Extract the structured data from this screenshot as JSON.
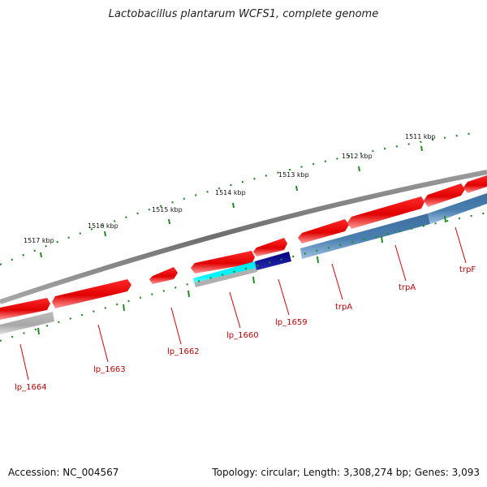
{
  "map": {
    "title": "Lactobacillus plantarum WCFS1, complete genome",
    "accession_text": "Accession: NC_004567",
    "summary_text": "Topology: circular; Length: 3,308,274 bp; Genes: 3,093"
  },
  "kbp_ticks": [
    "1517 kbp",
    "1516 kbp",
    "1515 kbp",
    "1514 kbp",
    "1513 kbp",
    "1512 kbp",
    "1511 kbp"
  ],
  "gene_labels": [
    "lp_1664",
    "lp_1663",
    "lp_1662",
    "lp_1660",
    "lp_1659",
    "trpA",
    "trpA",
    "trpF"
  ],
  "colors": {
    "forward_strand": "#e00000",
    "reverse_strand": "#4a7fb0",
    "cyan_feature": "#00e5ee",
    "navy_feature": "#00007f",
    "grey_feature": "#a8a8a8",
    "backbone": "#808080",
    "tick_marks": "#228b22",
    "label_text": "#c00000"
  }
}
